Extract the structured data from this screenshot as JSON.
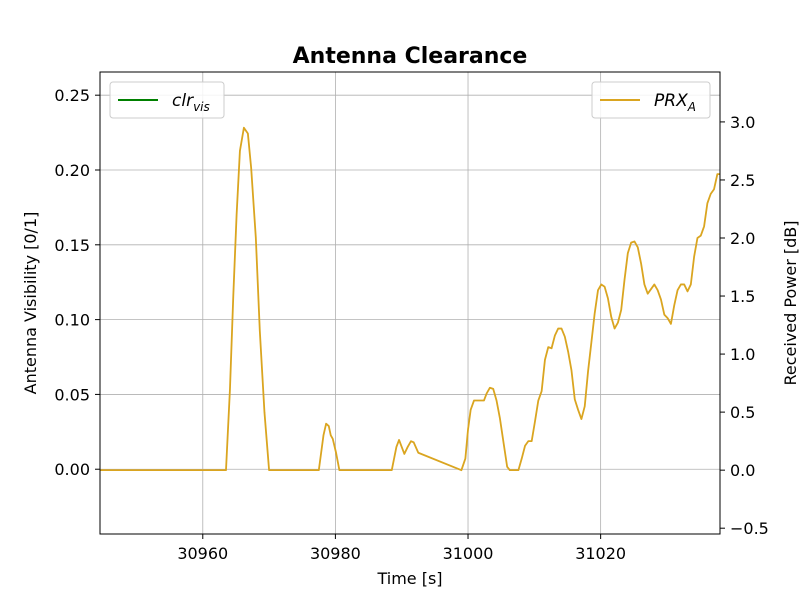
{
  "chart_data": {
    "type": "line",
    "title": "Antenna Clearance",
    "xlabel": "Time [s]",
    "ylabel_left": "Antenna Visibility [0/1]",
    "ylabel_right": "Received Power [dB]",
    "xlim": [
      30944.5,
      31038
    ],
    "ylim_left": [
      -0.0433,
      0.2655
    ],
    "ylim_right": [
      -0.55,
      3.43
    ],
    "x_ticks": [
      30960,
      30980,
      31000,
      31020
    ],
    "x_tick_labels": [
      "30960",
      "30980",
      "31000",
      "31020"
    ],
    "y_left_ticks": [
      0.0,
      0.05,
      0.1,
      0.15,
      0.2,
      0.25
    ],
    "y_left_tick_labels": [
      "0.00",
      "0.05",
      "0.10",
      "0.15",
      "0.20",
      "0.25"
    ],
    "y_right_ticks": [
      -0.5,
      0.0,
      0.5,
      1.0,
      1.5,
      2.0,
      2.5,
      3.0
    ],
    "y_right_tick_labels": [
      "−0.5",
      "0.0",
      "0.5",
      "1.0",
      "1.5",
      "2.0",
      "2.5",
      "3.0"
    ],
    "grid": true,
    "series": [
      {
        "name_main": "clr",
        "name_sub": "vis",
        "axis": "left",
        "color": "#008000",
        "legend_position": "top-left",
        "x": [],
        "y": []
      },
      {
        "name_main": "PRX",
        "name_sub": "A",
        "axis": "right",
        "color": "#DAA520",
        "legend_position": "top-right",
        "x": [
          30944.5,
          30963.5,
          30964.1,
          30964.6,
          30965.1,
          30965.6,
          30966.2,
          30966.8,
          30967.3,
          30968.0,
          30968.6,
          30969.3,
          30970.0,
          30977.5,
          30978.2,
          30978.6,
          30979.0,
          30979.3,
          30979.6,
          30980.1,
          30980.6,
          30988.5,
          30989.2,
          30989.6,
          30990.0,
          30990.4,
          30990.9,
          30991.4,
          30991.8,
          30992.5,
          30999.0,
          30999.6,
          31000.0,
          31000.4,
          31000.9,
          31001.4,
          31001.9,
          31002.4,
          31002.8,
          31003.3,
          31003.8,
          31004.3,
          31004.8,
          31005.4,
          31005.9,
          31006.3,
          31007.6,
          31008.1,
          31008.6,
          31009.1,
          31009.6,
          31010.1,
          31010.6,
          31011.1,
          31011.6,
          31012.1,
          31012.6,
          31013.1,
          31013.6,
          31014.1,
          31014.6,
          31015.1,
          31015.6,
          31016.1,
          31016.6,
          31017.1,
          31017.6,
          31018.1,
          31018.6,
          31019.1,
          31019.6,
          31020.1,
          31020.6,
          31021.1,
          31021.6,
          31022.1,
          31022.6,
          31023.1,
          31023.6,
          31024.1,
          31024.6,
          31025.1,
          31025.6,
          31026.1,
          31026.6,
          31027.1,
          31027.6,
          31028.1,
          31028.6,
          31029.1,
          31029.6,
          31030.1,
          31030.6,
          31031.1,
          31031.6,
          31032.1,
          31032.6,
          31033.1,
          31033.6,
          31034.1,
          31034.6,
          31035.1,
          31035.6,
          31036.1,
          31036.6,
          31037.1,
          31037.6,
          31038.0
        ],
        "y": [
          0.0,
          0.0,
          0.7,
          1.5,
          2.2,
          2.75,
          2.95,
          2.9,
          2.6,
          2.0,
          1.2,
          0.5,
          0.0,
          0.0,
          0.3,
          0.4,
          0.38,
          0.3,
          0.27,
          0.15,
          0.0,
          0.0,
          0.2,
          0.26,
          0.2,
          0.14,
          0.2,
          0.25,
          0.24,
          0.15,
          0.0,
          0.1,
          0.35,
          0.52,
          0.6,
          0.6,
          0.6,
          0.6,
          0.66,
          0.71,
          0.7,
          0.6,
          0.45,
          0.22,
          0.03,
          0.0,
          0.0,
          0.1,
          0.21,
          0.25,
          0.25,
          0.42,
          0.6,
          0.68,
          0.95,
          1.06,
          1.05,
          1.16,
          1.22,
          1.22,
          1.15,
          1.02,
          0.86,
          0.61,
          0.52,
          0.44,
          0.55,
          0.85,
          1.1,
          1.35,
          1.55,
          1.6,
          1.58,
          1.48,
          1.32,
          1.22,
          1.27,
          1.38,
          1.64,
          1.87,
          1.96,
          1.97,
          1.92,
          1.78,
          1.6,
          1.52,
          1.56,
          1.6,
          1.55,
          1.47,
          1.34,
          1.31,
          1.26,
          1.42,
          1.55,
          1.6,
          1.6,
          1.54,
          1.6,
          1.84,
          2.0,
          2.02,
          2.1,
          2.3,
          2.38,
          2.42,
          2.55,
          2.55
        ]
      }
    ]
  }
}
